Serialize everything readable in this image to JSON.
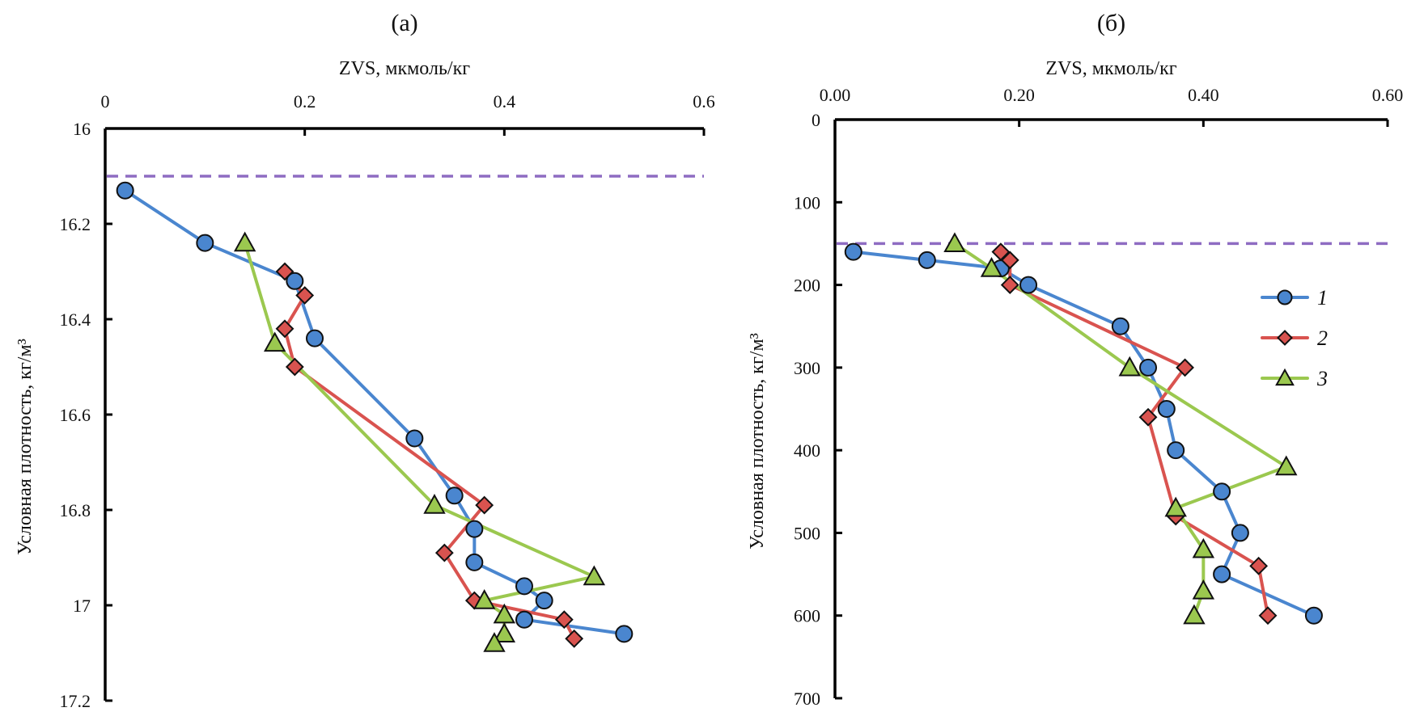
{
  "chart_data": [
    {
      "type": "line",
      "panel_label": "(a)",
      "xlabel": "ZVS, мкмоль/кг",
      "ylabel": "Условная плотность, кг/м³",
      "xlim": [
        0,
        0.6
      ],
      "ylim": [
        16,
        17.2
      ],
      "y_inverted": true,
      "x_axis_position": "top",
      "xticks": [
        "0",
        "0.2",
        "0.4",
        "0.6"
      ],
      "xtick_values": [
        0,
        0.2,
        0.4,
        0.6
      ],
      "yticks": [
        "16",
        "16.2",
        "16.4",
        "16.6",
        "16.8",
        "17",
        "17.2"
      ],
      "ytick_values": [
        16,
        16.2,
        16.4,
        16.6,
        16.8,
        17,
        17.2
      ],
      "reference_line": {
        "y": 16.1,
        "style": "dashed",
        "color": "#8e6cc2"
      },
      "grid": false,
      "series": [
        {
          "name": "1",
          "color": "#4a86cf",
          "marker": "circle",
          "x": [
            0.02,
            0.1,
            0.19,
            0.21,
            0.31,
            0.35,
            0.37,
            0.37,
            0.42,
            0.44,
            0.42,
            0.52
          ],
          "y": [
            16.13,
            16.24,
            16.32,
            16.44,
            16.65,
            16.77,
            16.84,
            16.91,
            16.96,
            16.99,
            17.03,
            17.06
          ]
        },
        {
          "name": "2",
          "color": "#d9534f",
          "marker": "diamond",
          "x": [
            0.18,
            0.2,
            0.18,
            0.19,
            0.38,
            0.34,
            0.37,
            0.46,
            0.47
          ],
          "y": [
            16.3,
            16.35,
            16.42,
            16.5,
            16.79,
            16.89,
            16.99,
            17.03,
            17.07
          ]
        },
        {
          "name": "3",
          "color": "#9bc84f",
          "marker": "triangle",
          "x": [
            0.14,
            0.17,
            0.33,
            0.49,
            0.38,
            0.4,
            0.4,
            0.39
          ],
          "y": [
            16.24,
            16.45,
            16.79,
            16.94,
            16.99,
            17.02,
            17.06,
            17.08
          ]
        }
      ]
    },
    {
      "type": "line",
      "panel_label": "(б)",
      "xlabel": "ZVS, мкмоль/кг",
      "ylabel": "Условная плотность, кг/м³",
      "xlim": [
        0,
        0.6
      ],
      "ylim": [
        0,
        700
      ],
      "y_inverted": true,
      "x_axis_position": "top",
      "xticks": [
        "0.00",
        "0.20",
        "0.40",
        "0.60"
      ],
      "xtick_values": [
        0,
        0.2,
        0.4,
        0.6
      ],
      "yticks": [
        "0",
        "100",
        "200",
        "300",
        "400",
        "500",
        "600",
        "700"
      ],
      "ytick_values": [
        0,
        100,
        200,
        300,
        400,
        500,
        600,
        700
      ],
      "reference_line": {
        "y": 150,
        "style": "dashed",
        "color": "#8e6cc2"
      },
      "grid": false,
      "legend": {
        "placement": "right",
        "entries": [
          "1",
          "2",
          "3"
        ]
      },
      "series": [
        {
          "name": "1",
          "color": "#4a86cf",
          "marker": "circle",
          "x": [
            0.02,
            0.1,
            0.18,
            0.21,
            0.31,
            0.34,
            0.36,
            0.37,
            0.42,
            0.44,
            0.42,
            0.52
          ],
          "y": [
            160,
            170,
            180,
            200,
            250,
            300,
            350,
            400,
            450,
            500,
            550,
            600
          ]
        },
        {
          "name": "2",
          "color": "#d9534f",
          "marker": "diamond",
          "x": [
            0.18,
            0.19,
            0.19,
            0.38,
            0.34,
            0.37,
            0.46,
            0.47
          ],
          "y": [
            160,
            170,
            200,
            300,
            360,
            480,
            540,
            600
          ]
        },
        {
          "name": "3",
          "color": "#9bc84f",
          "marker": "triangle",
          "x": [
            0.13,
            0.17,
            0.32,
            0.49,
            0.37,
            0.4,
            0.4,
            0.39
          ],
          "y": [
            150,
            180,
            300,
            420,
            470,
            520,
            570,
            600
          ]
        }
      ]
    }
  ]
}
